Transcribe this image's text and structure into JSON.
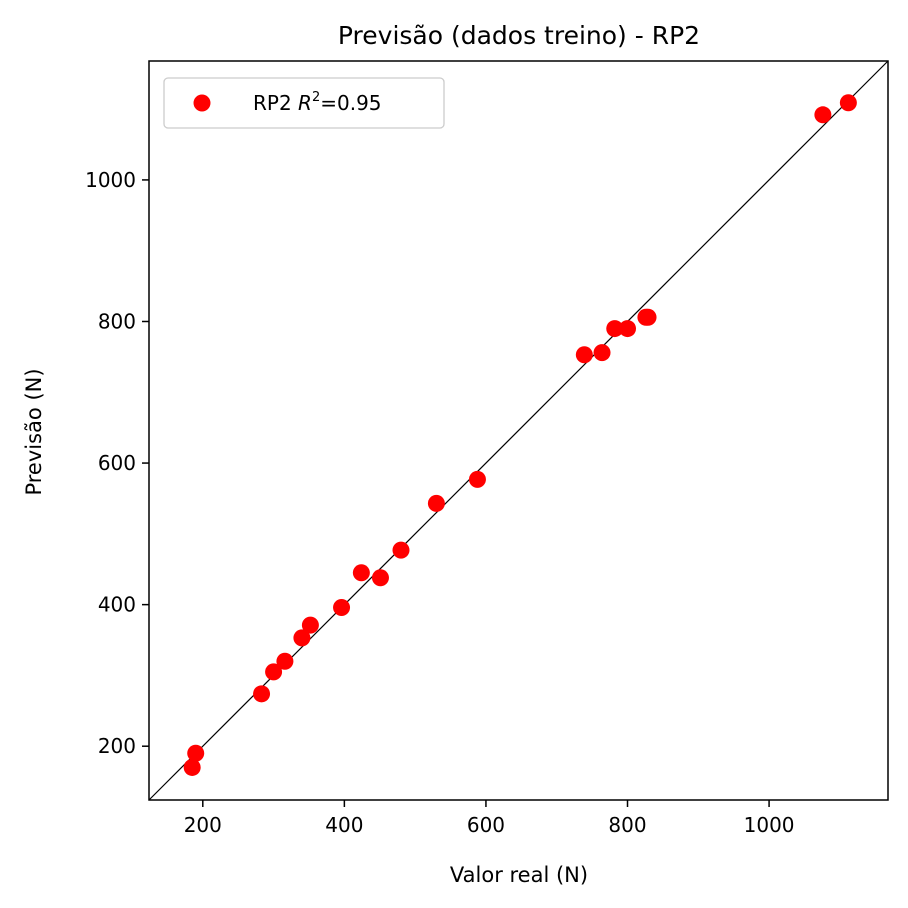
{
  "chart_data": {
    "type": "scatter",
    "title": "Previsão (dados treino) - RP2",
    "xlabel": "Valor real (N)",
    "ylabel": "Previsão (N)",
    "xlim": [
      124,
      1168
    ],
    "ylim": [
      124,
      1168
    ],
    "xticks": [
      200,
      400,
      600,
      800,
      1000
    ],
    "yticks": [
      200,
      400,
      600,
      800,
      1000
    ],
    "grid": false,
    "legend_position": "top-left",
    "reference_line": "y = x",
    "series": [
      {
        "name": "RP2",
        "legend_label": {
          "prefix": "RP2 ",
          "symbol": "R",
          "superscript": "2",
          "suffix": "=0.95"
        },
        "color": "#ff0000",
        "points": [
          {
            "x": 185,
            "y": 170
          },
          {
            "x": 190,
            "y": 190
          },
          {
            "x": 283,
            "y": 274
          },
          {
            "x": 300,
            "y": 305
          },
          {
            "x": 316,
            "y": 320
          },
          {
            "x": 340,
            "y": 353
          },
          {
            "x": 352,
            "y": 371
          },
          {
            "x": 396,
            "y": 396
          },
          {
            "x": 424,
            "y": 445
          },
          {
            "x": 451,
            "y": 438
          },
          {
            "x": 480,
            "y": 477
          },
          {
            "x": 530,
            "y": 543
          },
          {
            "x": 588,
            "y": 577
          },
          {
            "x": 739,
            "y": 753
          },
          {
            "x": 764,
            "y": 756
          },
          {
            "x": 782,
            "y": 790
          },
          {
            "x": 800,
            "y": 790
          },
          {
            "x": 826,
            "y": 806
          },
          {
            "x": 829,
            "y": 806
          },
          {
            "x": 1076,
            "y": 1092
          },
          {
            "x": 1112,
            "y": 1109
          }
        ]
      }
    ]
  }
}
